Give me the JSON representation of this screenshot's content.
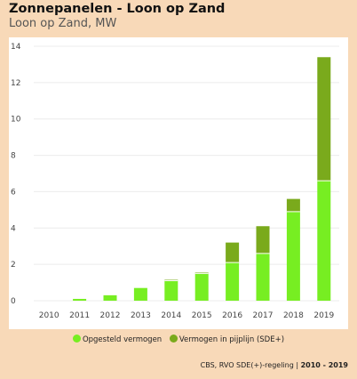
{
  "header": {
    "title": "Zonnepanelen - Loon op Zand",
    "subtitle": "Loon op Zand, MW"
  },
  "legend": {
    "items": [
      {
        "label": "Opgesteld vermogen",
        "color": "#77ee22"
      },
      {
        "label": "Vermogen in pijplijn (SDE+)",
        "color": "#7aaa1c"
      }
    ]
  },
  "source": {
    "text": "CBS, RVO SDE(+)-regeling |",
    "period": "2010 - 2019"
  },
  "chart_data": {
    "type": "bar",
    "stacked": true,
    "categories": [
      "2010",
      "2011",
      "2012",
      "2013",
      "2014",
      "2015",
      "2016",
      "2017",
      "2018",
      "2019"
    ],
    "series": [
      {
        "name": "Opgesteld vermogen",
        "color": "#77ee22",
        "values": [
          0,
          0.1,
          0.3,
          0.7,
          1.1,
          1.5,
          2.1,
          2.6,
          4.9,
          6.6
        ]
      },
      {
        "name": "Vermogen in pijplijn (SDE+)",
        "color": "#7aaa1c",
        "values": [
          0,
          0,
          0,
          0,
          0.05,
          0.05,
          1.1,
          1.5,
          0.7,
          6.8
        ]
      }
    ],
    "yticks": [
      0,
      2,
      4,
      6,
      8,
      10,
      12,
      14
    ],
    "ylim": [
      0,
      14
    ],
    "grid": true
  }
}
